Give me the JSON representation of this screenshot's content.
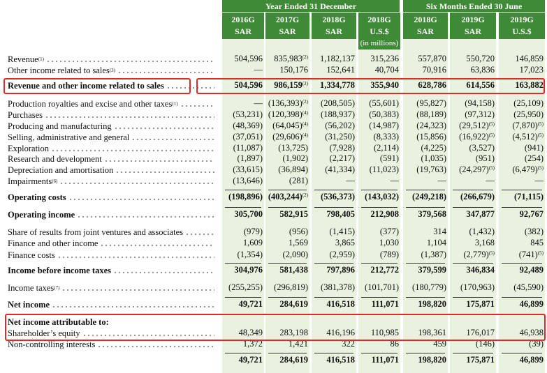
{
  "header": {
    "groups": [
      "Year Ended 31 December",
      "Six Months Ended 30 June"
    ],
    "columns": [
      {
        "period": "2016G",
        "unit": "SAR"
      },
      {
        "period": "2017G",
        "unit": "SAR"
      },
      {
        "period": "2018G",
        "unit": "SAR"
      },
      {
        "period": "2018G",
        "unit": "U.S.$",
        "note": "(in millions)"
      },
      {
        "period": "2018G",
        "unit": "SAR"
      },
      {
        "period": "2019G",
        "unit": "SAR"
      },
      {
        "period": "2019G",
        "unit": "U.S.$"
      }
    ]
  },
  "table": {
    "rows": [
      {
        "label": "Revenue",
        "note": "(1)",
        "cells": [
          "504,596",
          {
            "text": "835,983",
            "note": "(2)"
          },
          "1,182,137",
          "315,236",
          "557,870",
          "550,720",
          "146,859"
        ]
      },
      {
        "label": "Other income related to sales",
        "note": "(3)",
        "cells": [
          "—",
          "150,176",
          "152,641",
          "40,704",
          "70,916",
          "63,836",
          "17,023"
        ]
      },
      {
        "label": "Revenue and other income related to sales",
        "bold": true,
        "cells": [
          "504,596",
          {
            "text": "986,159",
            "note": "(2)"
          },
          "1,334,778",
          "355,940",
          "628,786",
          "614,556",
          "163,882"
        ]
      },
      {
        "label": "Production royalties and excise and other taxes",
        "note": "(1)",
        "cells": [
          "—",
          {
            "text": "(136,393)",
            "note": "(2)"
          },
          "(208,505)",
          "(55,601)",
          "(95,827)",
          "(94,158)",
          "(25,109)"
        ]
      },
      {
        "label": "Purchases",
        "cells": [
          "(53,231)",
          {
            "text": "(120,398)",
            "note": "(4)"
          },
          "(188,937)",
          "(50,383)",
          "(88,189)",
          "(97,312)",
          "(25,950)"
        ]
      },
      {
        "label": "Producing and manufacturing",
        "cells": [
          "(48,369)",
          {
            "text": "(64,045)",
            "note": "(4)"
          },
          "(56,202)",
          "(14,987)",
          "(24,323)",
          {
            "text": "(29,512)",
            "note": "(5)"
          },
          {
            "text": "(7,870)",
            "note": "(5)"
          }
        ]
      },
      {
        "label": "Selling, administrative and general",
        "cells": [
          "(37,051)",
          {
            "text": "(29,606)",
            "note": "(4)"
          },
          "(31,250)",
          "(8,333)",
          "(15,856)",
          {
            "text": "(16,922)",
            "note": "(5)"
          },
          {
            "text": "(4,512)",
            "note": "(5)"
          }
        ]
      },
      {
        "label": "Exploration",
        "cells": [
          "(11,087)",
          "(13,725)",
          "(7,928)",
          "(2,114)",
          "(4,225)",
          "(3,527)",
          "(941)"
        ]
      },
      {
        "label": "Research and development",
        "cells": [
          "(1,897)",
          "(1,902)",
          "(2,217)",
          "(591)",
          "(1,035)",
          "(951)",
          "(254)"
        ]
      },
      {
        "label": "Depreciation and amortisation",
        "cells": [
          "(33,615)",
          "(36,894)",
          "(41,334)",
          "(11,023)",
          "(19,763)",
          {
            "text": "(24,297)",
            "note": "(5)"
          },
          {
            "text": "(6,479)",
            "note": "(5)"
          }
        ]
      },
      {
        "label": "Impairments",
        "note": "(6)",
        "cells": [
          "(13,646)",
          "(281)",
          "—",
          "—",
          "—",
          "—",
          "—"
        ]
      },
      {
        "label": "Operating costs",
        "bold": true,
        "cells": [
          "(198,896)",
          {
            "text": "(403,244)",
            "note": "(2)"
          },
          "(536,373)",
          "(143,032)",
          "(249,218)",
          "(266,679)",
          "(71,115)"
        ]
      },
      {
        "label": "Operating income",
        "bold": true,
        "cells": [
          "305,700",
          "582,915",
          "798,405",
          "212,908",
          "379,568",
          "347,877",
          "92,767"
        ]
      },
      {
        "label": "Share of results from joint ventures and associates",
        "cells": [
          "(979)",
          "(956)",
          "(1,415)",
          "(377)",
          "314",
          "(1,432)",
          "(382)"
        ]
      },
      {
        "label": "Finance and other income",
        "cells": [
          "1,609",
          "1,569",
          "3,865",
          "1,030",
          "1,104",
          "3,168",
          "845"
        ]
      },
      {
        "label": "Finance costs",
        "cells": [
          "(1,354)",
          "(2,090)",
          "(2,959)",
          "(789)",
          "(1,387)",
          {
            "text": "(2,779)",
            "note": "(5)"
          },
          {
            "text": "(741)",
            "note": "(5)"
          }
        ]
      },
      {
        "label": "Income before income taxes",
        "bold": true,
        "cells": [
          "304,976",
          "581,438",
          "797,896",
          "212,772",
          "379,599",
          "346,834",
          "92,489"
        ]
      },
      {
        "label": "Income taxes",
        "note": "(7)",
        "cells": [
          "(255,255)",
          "(296,819)",
          "(381,378)",
          "(101,701)",
          "(180,779)",
          "(170,963)",
          "(45,590)"
        ]
      },
      {
        "label": "Net income",
        "bold": true,
        "cells": [
          "49,721",
          "284,619",
          "416,518",
          "111,071",
          "198,820",
          "175,871",
          "46,899"
        ]
      },
      {
        "label": "Net income attributable to:",
        "bold": true,
        "cells": []
      },
      {
        "label": "Shareholder’s equity",
        "cells": [
          "48,349",
          "283,198",
          "416,196",
          "110,985",
          "198,361",
          "176,017",
          "46,938"
        ]
      },
      {
        "label": "Non-controlling interests",
        "cells": [
          "1,372",
          "1,421",
          "322",
          "86",
          "459",
          "(146)",
          "(39)"
        ]
      },
      {
        "bold": true,
        "cells": [
          "49,721",
          "284,619",
          "416,518",
          "111,071",
          "198,820",
          "175,871",
          "46,899"
        ]
      }
    ]
  }
}
